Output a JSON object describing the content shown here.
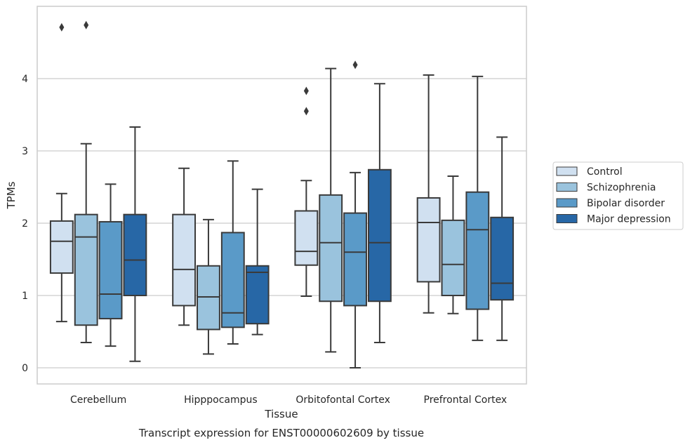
{
  "chart_data": {
    "type": "box",
    "xlabel": "Tissue",
    "ylabel": "TPMs",
    "caption": "Transcript expression for ENST00000602609 by tissue",
    "ylim": [
      -0.23,
      5.0
    ],
    "yticks": [
      0,
      1,
      2,
      3,
      4
    ],
    "grid": "horizontal",
    "legend_position": "right",
    "categories": [
      "Cerebellum",
      "Hipppocampus",
      "Orbitofontal Cortex",
      "Prefrontal Cortex"
    ],
    "series": [
      {
        "name": "Control",
        "color": "#d0e0f0",
        "boxes": [
          {
            "whisker_low": 0.64,
            "q1": 1.31,
            "median": 1.75,
            "q3": 2.03,
            "whisker_high": 2.41,
            "outliers": [
              4.71
            ]
          },
          {
            "whisker_low": 0.59,
            "q1": 0.86,
            "median": 1.36,
            "q3": 2.12,
            "whisker_high": 2.76,
            "outliers": []
          },
          {
            "whisker_low": 0.99,
            "q1": 1.42,
            "median": 1.61,
            "q3": 2.17,
            "whisker_high": 2.59,
            "outliers": [
              3.83,
              3.55
            ]
          },
          {
            "whisker_low": 0.76,
            "q1": 1.19,
            "median": 2.01,
            "q3": 2.35,
            "whisker_high": 4.05,
            "outliers": []
          }
        ]
      },
      {
        "name": "Schizophrenia",
        "color": "#9ac3dd",
        "boxes": [
          {
            "whisker_low": 0.35,
            "q1": 0.59,
            "median": 1.81,
            "q3": 2.12,
            "whisker_high": 3.1,
            "outliers": [
              4.74
            ]
          },
          {
            "whisker_low": 0.19,
            "q1": 0.53,
            "median": 0.98,
            "q3": 1.41,
            "whisker_high": 2.05,
            "outliers": []
          },
          {
            "whisker_low": 0.22,
            "q1": 0.92,
            "median": 1.73,
            "q3": 2.39,
            "whisker_high": 4.14,
            "outliers": []
          },
          {
            "whisker_low": 0.75,
            "q1": 1.0,
            "median": 1.43,
            "q3": 2.04,
            "whisker_high": 2.65,
            "outliers": []
          }
        ]
      },
      {
        "name": "Bipolar disorder",
        "color": "#5a9ac8",
        "boxes": [
          {
            "whisker_low": 0.3,
            "q1": 0.68,
            "median": 1.02,
            "q3": 2.02,
            "whisker_high": 2.54,
            "outliers": []
          },
          {
            "whisker_low": 0.33,
            "q1": 0.56,
            "median": 0.76,
            "q3": 1.87,
            "whisker_high": 2.86,
            "outliers": []
          },
          {
            "whisker_low": 0.0,
            "q1": 0.86,
            "median": 1.6,
            "q3": 2.14,
            "whisker_high": 2.7,
            "outliers": [
              4.19
            ]
          },
          {
            "whisker_low": 0.38,
            "q1": 0.81,
            "median": 1.91,
            "q3": 2.43,
            "whisker_high": 4.03,
            "outliers": []
          }
        ]
      },
      {
        "name": "Major depression",
        "color": "#2767a6",
        "boxes": [
          {
            "whisker_low": 0.09,
            "q1": 1.0,
            "median": 1.49,
            "q3": 2.12,
            "whisker_high": 3.33,
            "outliers": []
          },
          {
            "whisker_low": 0.46,
            "q1": 0.61,
            "median": 1.32,
            "q3": 1.41,
            "whisker_high": 2.47,
            "outliers": []
          },
          {
            "whisker_low": 0.35,
            "q1": 0.92,
            "median": 1.73,
            "q3": 2.74,
            "whisker_high": 3.93,
            "outliers": []
          },
          {
            "whisker_low": 0.38,
            "q1": 0.94,
            "median": 1.17,
            "q3": 2.08,
            "whisker_high": 3.19,
            "outliers": []
          }
        ]
      }
    ]
  }
}
